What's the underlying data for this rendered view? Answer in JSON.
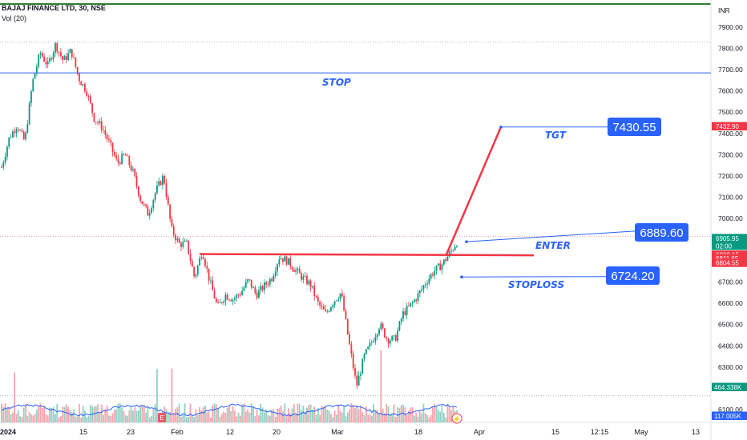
{
  "legend": {
    "symbol_line": "BAJAJ FINANCE LTD, 30, NSE",
    "volume_line": "Vol (20)"
  },
  "currency": "INR",
  "chart_data": {
    "type": "candlestick",
    "symbol": "BAJAJ FINANCE LTD",
    "interval": "30",
    "exchange": "NSE",
    "ylim": [
      6050,
      7990
    ],
    "y_ticks": [
      6100,
      6200,
      6300,
      6400,
      6500,
      6600,
      6700,
      6800,
      6900,
      7000,
      7100,
      7200,
      7300,
      7400,
      7500,
      7600,
      7700,
      7800,
      7900
    ],
    "x_ticks": [
      "2024",
      "15",
      "23",
      "Feb",
      "12",
      "20",
      "Mar",
      "18",
      "Apr",
      "15",
      "12:15",
      "May",
      "13"
    ],
    "price_path": [
      7240,
      7380,
      7440,
      7360,
      7640,
      7780,
      7720,
      7820,
      7740,
      7790,
      7660,
      7600,
      7470,
      7430,
      7350,
      7260,
      7300,
      7220,
      7090,
      7020,
      7130,
      7200,
      6950,
      6880,
      6880,
      6720,
      6850,
      6700,
      6580,
      6640,
      6620,
      6650,
      6710,
      6640,
      6680,
      6720,
      6820,
      6800,
      6760,
      6720,
      6690,
      6600,
      6550,
      6610,
      6650,
      6420,
      6210,
      6350,
      6420,
      6500,
      6430,
      6430,
      6550,
      6590,
      6640,
      6700,
      6750,
      6780,
      6830,
      6890
    ],
    "lines": [
      {
        "label": "STOP",
        "price": 7685
      },
      {
        "label": "resistance",
        "price": 6830
      },
      {
        "label": "upper dotted",
        "price": 7830
      },
      {
        "label": "mid dotted",
        "price": 6915
      },
      {
        "label": "lower dotted",
        "price": 6165
      }
    ],
    "annotations": {
      "stop_label": "STOP",
      "tgt_label": "TGT",
      "enter_label": "ENTER",
      "stoploss_label": "STOPLOSS",
      "target_value": "7430.55",
      "enter_value": "6889.60",
      "stoploss_value": "6724.20"
    },
    "price_badges": [
      {
        "text": "7432.90",
        "price": 7432.9,
        "color": "#f23645"
      },
      {
        "text": "6905.95",
        "sub": "02:00",
        "price": 6906,
        "color": "#089981"
      },
      {
        "text": "6828.15",
        "price": 6828,
        "color": "#f23645"
      },
      {
        "text": "6811.65",
        "price": 6811,
        "color": "#f23645"
      },
      {
        "text": "6804.55",
        "price": 6790,
        "color": "#f23645"
      }
    ],
    "volume_badges": [
      {
        "text": "464.338K",
        "color": "#089981"
      },
      {
        "text": "117.005K",
        "color": "#2962ff"
      }
    ]
  }
}
